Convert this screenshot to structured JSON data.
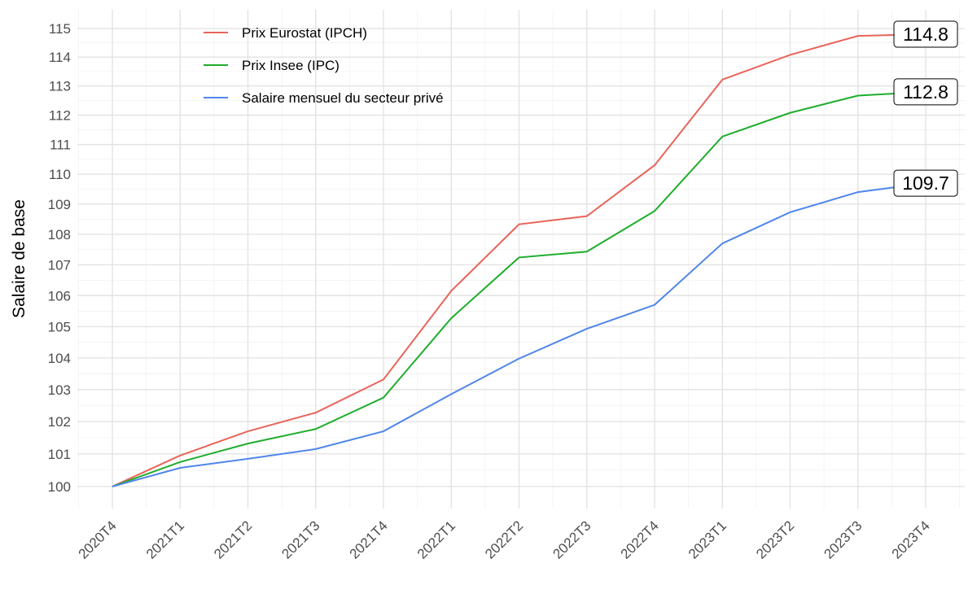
{
  "chart_data": {
    "type": "line",
    "y_label": "Salaire de base",
    "categories": [
      "2020T4",
      "2021T1",
      "2021T2",
      "2021T3",
      "2021T4",
      "2022T1",
      "2022T2",
      "2022T3",
      "2022T4",
      "2023T1",
      "2023T2",
      "2023T3",
      "2023T4"
    ],
    "series": [
      {
        "name": "Prix Eurostat (IPCH)",
        "color": "#e8645a",
        "values": [
          100,
          100.95,
          101.7,
          102.28,
          103.32,
          106.15,
          108.33,
          108.6,
          110.3,
          113.22,
          114.08,
          114.74,
          114.8
        ]
      },
      {
        "name": "Prix Insee (IPC)",
        "color": "#1fad2c",
        "values": [
          100,
          100.75,
          101.32,
          101.77,
          102.75,
          105.27,
          107.24,
          107.43,
          108.77,
          111.27,
          112.08,
          112.67,
          112.8
        ]
      },
      {
        "name": "Salaire mensuel du secteur privé",
        "color": "#4f86ec",
        "values": [
          100,
          100.57,
          100.85,
          101.15,
          101.7,
          102.86,
          103.98,
          104.93,
          105.7,
          107.7,
          108.73,
          109.4,
          109.7
        ]
      }
    ],
    "ylim": [
      99.33,
      115.66
    ],
    "yticks": [
      100,
      101,
      102,
      103,
      104,
      105,
      106,
      107,
      108,
      109,
      110,
      111,
      112,
      113,
      114,
      115
    ],
    "log_y": true,
    "grid": true,
    "legend_position": "top-left"
  }
}
